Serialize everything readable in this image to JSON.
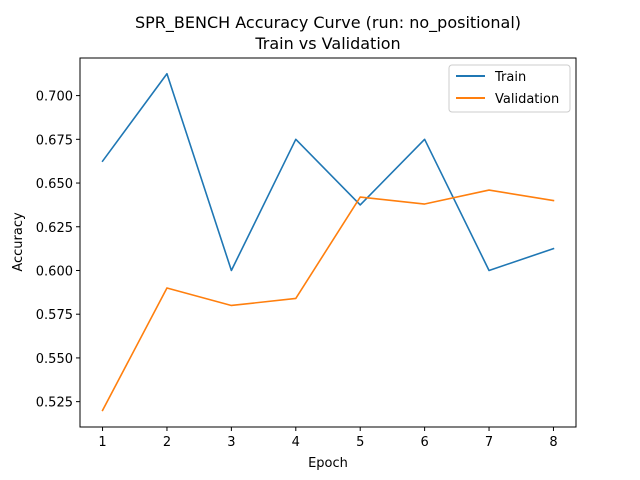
{
  "chart_data": {
    "type": "line",
    "title": "SPR_BENCH Accuracy Curve (run: no_positional)",
    "subtitle": "Train vs Validation",
    "xlabel": "Epoch",
    "ylabel": "Accuracy",
    "x": [
      1,
      2,
      3,
      4,
      5,
      6,
      7,
      8
    ],
    "xlim": [
      0.65,
      8.35
    ],
    "ylim": [
      0.5105,
      0.7215
    ],
    "xticks": [
      1,
      2,
      3,
      4,
      5,
      6,
      7,
      8
    ],
    "yticks": [
      0.525,
      0.55,
      0.575,
      0.6,
      0.625,
      0.65,
      0.675,
      0.7
    ],
    "ytick_labels": [
      "0.525",
      "0.550",
      "0.575",
      "0.600",
      "0.625",
      "0.650",
      "0.675",
      "0.700"
    ],
    "grid": false,
    "legend_position": "top-right",
    "series": [
      {
        "name": "Train",
        "color": "#1f77b4",
        "values": [
          0.6625,
          0.7125,
          0.6,
          0.675,
          0.6375,
          0.675,
          0.6,
          0.6125
        ]
      },
      {
        "name": "Validation",
        "color": "#ff7f0e",
        "values": [
          0.52,
          0.59,
          0.58,
          0.584,
          0.642,
          0.638,
          0.646,
          0.64
        ]
      }
    ]
  }
}
